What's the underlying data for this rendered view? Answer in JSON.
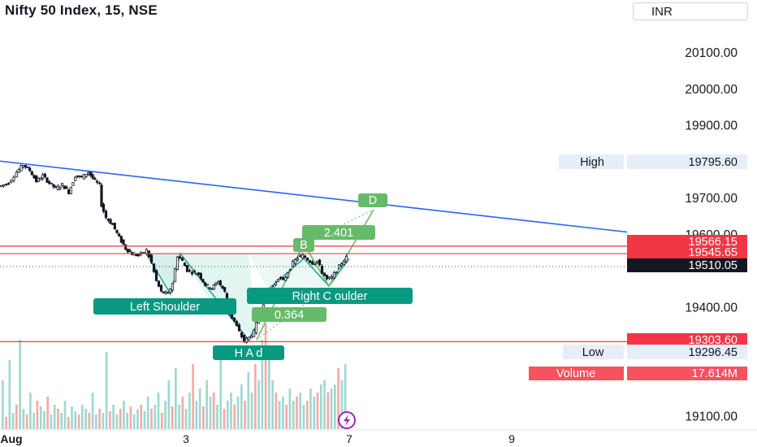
{
  "header": {
    "title": "Nifty 50 Index, 15, NSE",
    "currency": "INR"
  },
  "chart_data": {
    "type": "candlestick",
    "y_ticks": [
      "20100.00",
      "20000.00",
      "19900.00",
      "19700.00",
      "19600.00",
      "19400.00",
      "19100.00"
    ],
    "y_tick_values": [
      20100,
      20000,
      19900,
      19700,
      19600,
      19400,
      19100
    ],
    "x_ticks": [
      "Aug",
      "3",
      "7",
      "9"
    ],
    "price_tags": {
      "high_label": "High",
      "high_value": "19795.60",
      "low_label": "Low",
      "low_value": "19296.45",
      "resistance_1": "19566.15",
      "resistance_2": "19545.65",
      "last": "19510.05",
      "support": "19303.60",
      "volume_label": "Volume",
      "volume_value": "17.614M"
    },
    "pattern_labels": {
      "left_shoulder": "Left Shoulder",
      "head": "H A d",
      "right_shoulder": "Right  C oulder",
      "ratio_1": "0.364",
      "ratio_2": "2.401",
      "point_b": "B",
      "point_d": "D"
    },
    "horizontal_levels": [
      19566.15,
      19545.65,
      19303.6
    ],
    "last_price": 19510.05,
    "trendline": {
      "from": [
        0,
        19800
      ],
      "to": [
        772,
        19605
      ]
    },
    "price_path": [
      [
        0,
        19730
      ],
      [
        12,
        19740
      ],
      [
        22,
        19770
      ],
      [
        30,
        19790
      ],
      [
        38,
        19775
      ],
      [
        46,
        19745
      ],
      [
        54,
        19760
      ],
      [
        62,
        19740
      ],
      [
        70,
        19725
      ],
      [
        78,
        19735
      ],
      [
        86,
        19715
      ],
      [
        94,
        19760
      ],
      [
        102,
        19755
      ],
      [
        110,
        19770
      ],
      [
        118,
        19745
      ],
      [
        124,
        19735
      ],
      [
        126,
        19680
      ],
      [
        132,
        19645
      ],
      [
        140,
        19625
      ],
      [
        148,
        19590
      ],
      [
        156,
        19560
      ],
      [
        164,
        19545
      ],
      [
        172,
        19540
      ],
      [
        182,
        19555
      ],
      [
        188,
        19520
      ],
      [
        194,
        19470
      ],
      [
        200,
        19440
      ],
      [
        208,
        19435
      ],
      [
        214,
        19465
      ],
      [
        220,
        19540
      ],
      [
        226,
        19525
      ],
      [
        232,
        19500
      ],
      [
        238,
        19495
      ],
      [
        246,
        19490
      ],
      [
        254,
        19460
      ],
      [
        262,
        19450
      ],
      [
        270,
        19470
      ],
      [
        278,
        19440
      ],
      [
        284,
        19380
      ],
      [
        290,
        19360
      ],
      [
        296,
        19330
      ],
      [
        302,
        19305
      ],
      [
        308,
        19315
      ],
      [
        314,
        19330
      ],
      [
        320,
        19375
      ],
      [
        326,
        19410
      ],
      [
        332,
        19430
      ],
      [
        338,
        19455
      ],
      [
        344,
        19480
      ],
      [
        350,
        19470
      ],
      [
        356,
        19495
      ],
      [
        362,
        19520
      ],
      [
        368,
        19535
      ],
      [
        374,
        19540
      ],
      [
        380,
        19530
      ],
      [
        386,
        19520
      ],
      [
        392,
        19525
      ],
      [
        398,
        19495
      ],
      [
        404,
        19475
      ],
      [
        410,
        19480
      ],
      [
        416,
        19500
      ],
      [
        422,
        19520
      ],
      [
        428,
        19535
      ]
    ],
    "volume_heights": [
      60,
      15,
      85,
      20,
      30,
      110,
      25,
      18,
      45,
      20,
      35,
      28,
      22,
      40,
      18,
      30,
      25,
      20,
      35,
      15,
      28,
      22,
      18,
      30,
      25,
      20,
      45,
      18,
      25,
      20,
      95,
      22,
      30,
      18,
      25,
      35,
      20,
      28,
      18,
      24,
      30,
      22,
      40,
      25,
      30,
      45,
      20,
      35,
      60,
      28,
      75,
      30,
      40,
      25,
      45,
      80,
      35,
      50,
      28,
      60,
      40,
      45,
      30,
      90,
      25,
      35,
      45,
      30,
      40,
      55,
      35,
      70,
      45,
      80,
      60,
      110,
      130,
      95,
      60,
      45,
      35,
      40,
      30,
      50,
      35,
      40,
      45,
      30,
      35,
      50,
      40,
      45,
      55,
      60,
      45,
      50,
      55,
      75,
      60,
      80
    ]
  }
}
